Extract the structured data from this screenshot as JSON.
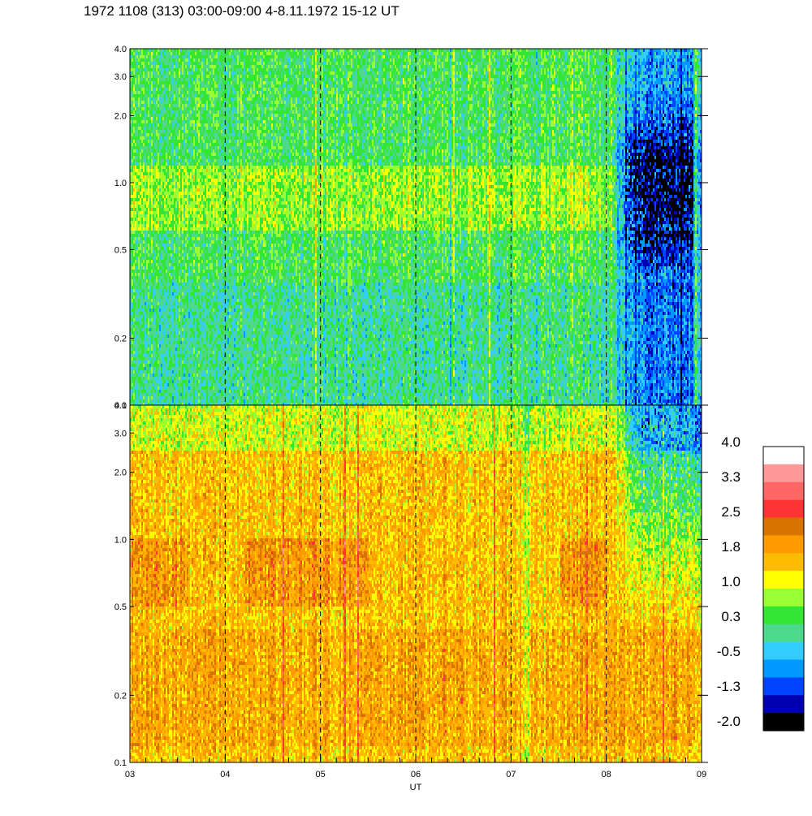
{
  "title": "1972 1108 (313) 03:00-09:00 4-8.11.1972  15-12 UT",
  "chart_data": {
    "type": "heatmap",
    "title": "1972 1108 (313) 03:00-09:00 4-8.11.1972  15-12 UT",
    "xlabel": "UT",
    "x_ticks": [
      "03",
      "04",
      "05",
      "06",
      "07",
      "08",
      "09"
    ],
    "xlim": [
      3,
      9
    ],
    "yscale": "log",
    "panels": [
      {
        "name": "upper",
        "ylim": [
          0.1,
          4.0
        ],
        "y_ticks": [
          "0.1",
          "0.2",
          "0.5",
          "1.0",
          "2.0",
          "3.0",
          "4.0"
        ],
        "typical_level": 0.3,
        "features": "green/cyan background; blue minimum (~-1.3 to -2.0) near 08-09 UT at 0.5-2.0"
      },
      {
        "name": "lower",
        "ylim": [
          0.1,
          4.0
        ],
        "y_ticks": [
          "0.1",
          "0.2",
          "0.5",
          "1.0",
          "2.0",
          "3.0",
          "4.0"
        ],
        "typical_level": 1.5,
        "features": "yellow/orange background; green/cyan (~-0.5 to 0.3) after 08 UT above 1.0"
      }
    ],
    "grid": "dashed vertical lines at each hour",
    "colorbar": {
      "labels": [
        "4.0",
        "3.3",
        "2.5",
        "1.8",
        "1.0",
        "0.3",
        "-0.5",
        "-1.3",
        "-2.0"
      ],
      "colors": [
        "#ffffff",
        "#ff9999",
        "#ff6666",
        "#ff3333",
        "#d97300",
        "#ff9900",
        "#ffbb00",
        "#ffff00",
        "#99ff33",
        "#33e633",
        "#4dd98c",
        "#33ccff",
        "#0099ff",
        "#0044ff",
        "#0000b3",
        "#000000"
      ]
    }
  }
}
